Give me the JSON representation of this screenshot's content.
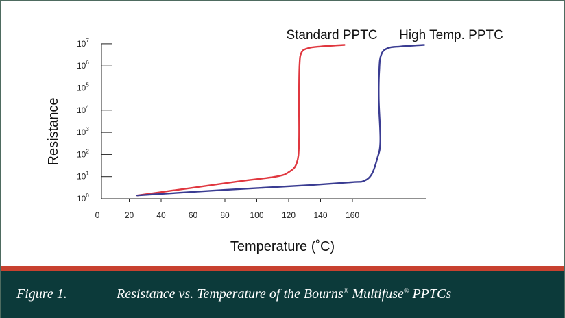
{
  "chart_data": {
    "type": "line",
    "xlabel": "Temperature (˚C)",
    "ylabel": "Resistance",
    "x_ticks": [
      0,
      20,
      40,
      60,
      80,
      100,
      120,
      140,
      160
    ],
    "y_ticks": [
      {
        "value": 0,
        "base": "10",
        "exp": "0"
      },
      {
        "value": 1,
        "base": "10",
        "exp": "1"
      },
      {
        "value": 2,
        "base": "10",
        "exp": "2"
      },
      {
        "value": 3,
        "base": "10",
        "exp": "3"
      },
      {
        "value": 4,
        "base": "10",
        "exp": "4"
      },
      {
        "value": 5,
        "base": "10",
        "exp": "5"
      },
      {
        "value": 6,
        "base": "10",
        "exp": "6"
      },
      {
        "value": 7,
        "base": "10",
        "exp": "7"
      }
    ],
    "xlim": [
      0,
      180
    ],
    "ylim_log10": [
      0,
      7
    ],
    "y_scale": "log",
    "grid": false,
    "series": [
      {
        "name": "Standard PPTC",
        "color": "#e0373f",
        "points": [
          [
            25,
            0.15
          ],
          [
            60,
            0.5
          ],
          [
            90,
            0.8
          ],
          [
            112,
            1.0
          ],
          [
            120,
            1.2
          ],
          [
            125,
            1.6
          ],
          [
            126.5,
            2.5
          ],
          [
            126.5,
            4.5
          ],
          [
            126.8,
            6.0
          ],
          [
            128,
            6.6
          ],
          [
            132,
            6.8
          ],
          [
            140,
            6.88
          ],
          [
            155,
            6.95
          ]
        ]
      },
      {
        "name": "High Temp. PPTC",
        "color": "#3a3c92",
        "points": [
          [
            25,
            0.15
          ],
          [
            80,
            0.4
          ],
          [
            130,
            0.6
          ],
          [
            160,
            0.75
          ],
          [
            167,
            0.8
          ],
          [
            172,
            1.1
          ],
          [
            175.5,
            1.8
          ],
          [
            177.5,
            2.6
          ],
          [
            176.5,
            4.5
          ],
          [
            176.8,
            5.8
          ],
          [
            178,
            6.5
          ],
          [
            182,
            6.8
          ],
          [
            190,
            6.88
          ],
          [
            205,
            6.95
          ]
        ]
      }
    ]
  },
  "caption": {
    "label": "Figure 1.",
    "text_parts": [
      "Resistance vs. Temperature of the Bourns",
      "®",
      " Multifuse",
      "®",
      " PPTCs"
    ]
  }
}
